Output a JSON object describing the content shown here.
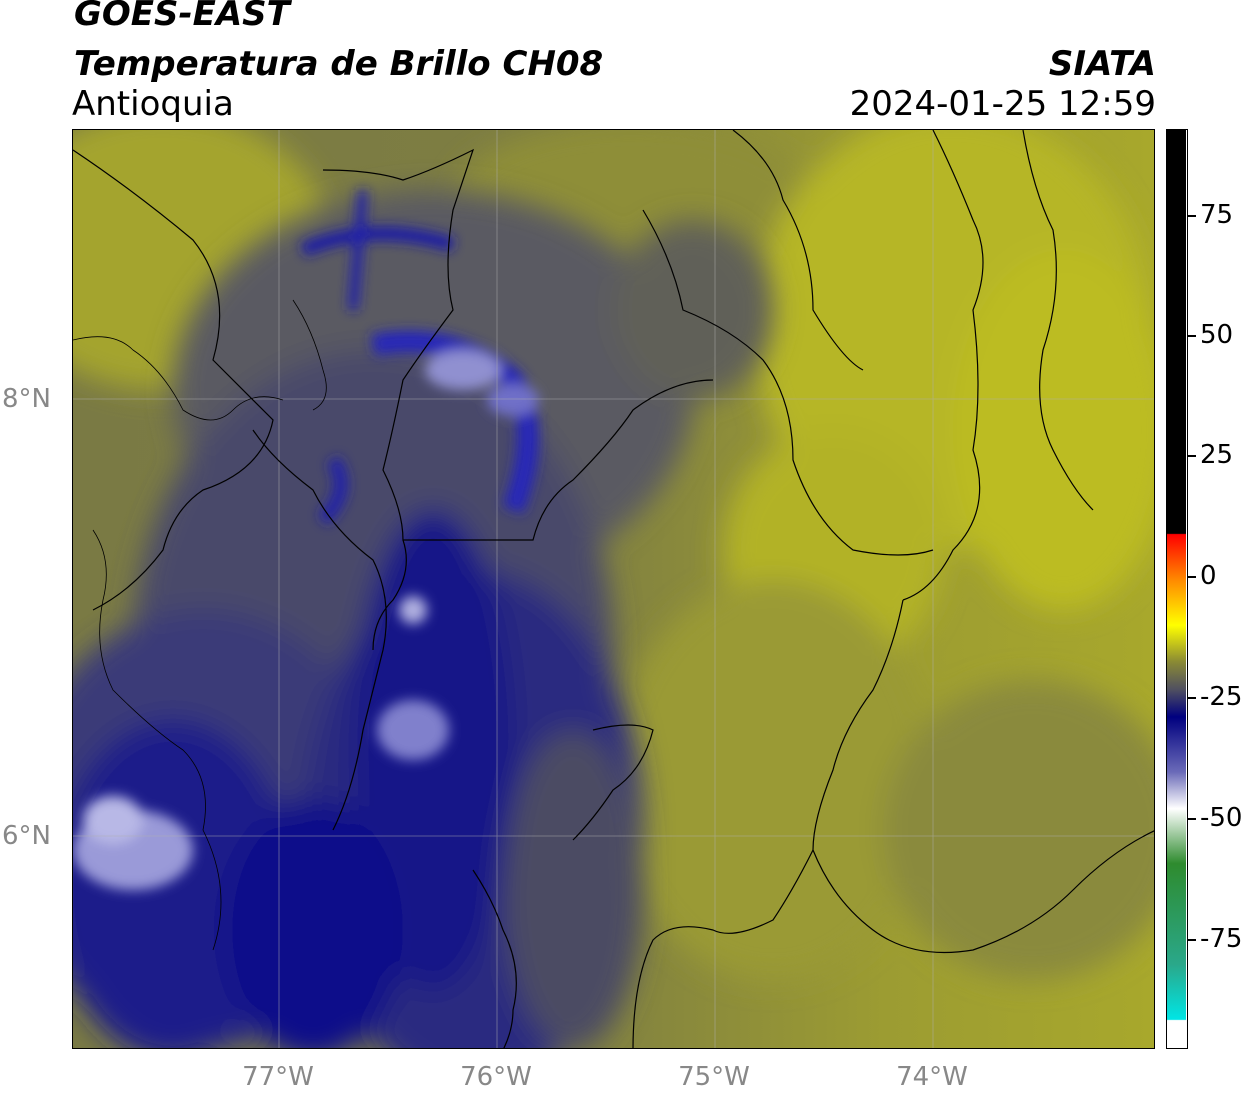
{
  "header": {
    "satellite": "GOES-EAST",
    "product": "Temperatura de Brillo CH08",
    "region": "Antioquia",
    "organization": "SIATA",
    "datetime": "2024-01-25 12:59"
  },
  "axes": {
    "latitude_labels": [
      "8°N",
      "6°N"
    ],
    "longitude_labels": [
      "77°W",
      "76°W",
      "75°W",
      "74°W"
    ]
  },
  "colorbar": {
    "tick_labels": [
      "75",
      "50",
      "25",
      "0",
      "-25",
      "-50",
      "-75"
    ],
    "colors": {
      "warm": "#000000",
      "red": "#ff0000",
      "yellow": "#ffff00",
      "olive": "#8a8a34",
      "gray": "#505060",
      "navy": "#00007f",
      "white": "#ffffff",
      "green": "#2e8b2e",
      "cyan": "#00e5e5"
    }
  },
  "map_colors": {
    "olive_light": "#b8b826",
    "olive": "#8c8c3a",
    "olive_dark": "#707048",
    "gray": "#58585c",
    "navy_gray": "#3c3c74",
    "navy": "#12128c",
    "deep_navy": "#000080",
    "pale": "#c8c8e8"
  }
}
